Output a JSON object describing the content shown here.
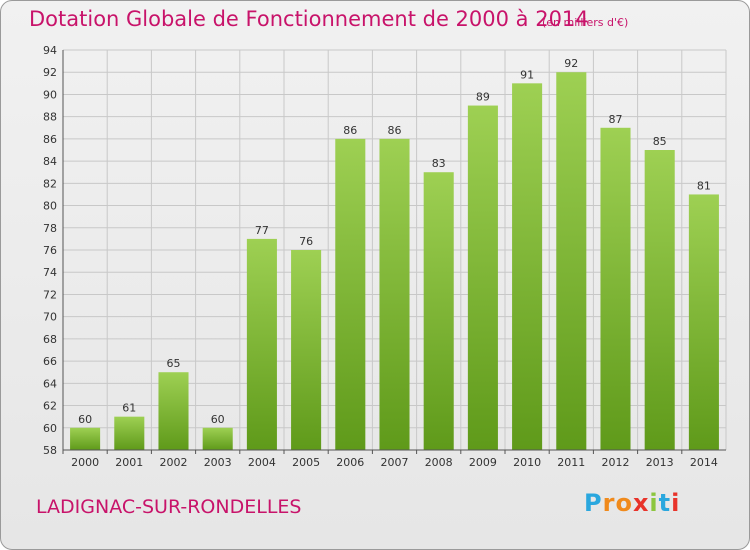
{
  "header": {
    "title": "Dotation Globale de Fonctionnement de 2000 à 2014",
    "subtitle": "(en milliers d'€)"
  },
  "footer": {
    "commune": "LADIGNAC-SUR-RONDELLES",
    "logo": "Proxiti"
  },
  "colors": {
    "accent": "#c8136a",
    "bar_top": "#9ed053",
    "bar_bottom": "#5f9a1a",
    "grid": "#c8c8c8"
  },
  "chart_data": {
    "type": "bar",
    "title": "Dotation Globale de Fonctionnement de 2000 à 2014",
    "subtitle": "(en milliers d'€)",
    "xlabel": "",
    "ylabel": "",
    "categories": [
      "2000",
      "2001",
      "2002",
      "2003",
      "2004",
      "2005",
      "2006",
      "2007",
      "2008",
      "2009",
      "2010",
      "2011",
      "2012",
      "2013",
      "2014"
    ],
    "values": [
      60,
      61,
      65,
      60,
      77,
      76,
      86,
      86,
      83,
      89,
      91,
      92,
      87,
      85,
      81
    ],
    "ylim": [
      58,
      94
    ],
    "yticks": [
      58,
      60,
      62,
      64,
      66,
      68,
      70,
      72,
      74,
      76,
      78,
      80,
      82,
      84,
      86,
      88,
      90,
      92,
      94
    ],
    "grid": true,
    "legend": "none"
  }
}
